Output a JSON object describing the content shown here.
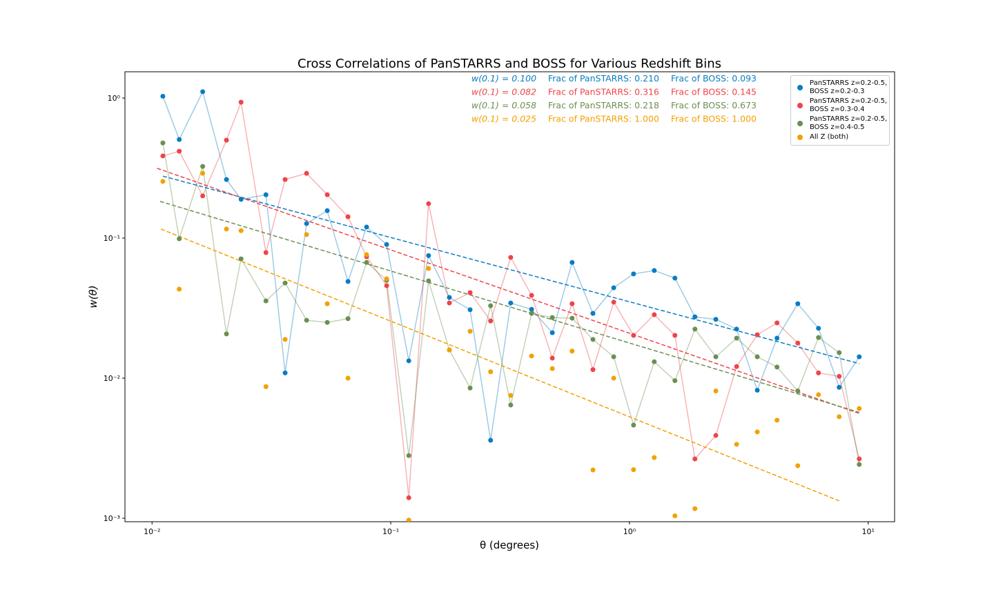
{
  "chart_data": {
    "type": "scatter-line",
    "title": "Cross Correlations of PanSTARRS and BOSS for Various Redshift Bins",
    "x_label": "θ (degrees)",
    "y_label": "w(θ)",
    "x_log": true,
    "y_log": true,
    "grid": false,
    "legend": "upper right",
    "xlim": [
      0.0077,
      12.9
    ],
    "ylim": [
      0.000944,
      1.54
    ],
    "xticks": [
      {
        "value": 0.01,
        "label": "10⁻²"
      },
      {
        "value": 0.1,
        "label": "10⁻¹"
      },
      {
        "value": 1,
        "label": "10⁰"
      },
      {
        "value": 10,
        "label": "10¹"
      }
    ],
    "yticks": [
      {
        "value": 0.001,
        "label": "10⁻³"
      },
      {
        "value": 0.01,
        "label": "10⁻²"
      },
      {
        "value": 0.1,
        "label": "10⁻¹"
      },
      {
        "value": 1,
        "label": "10⁰"
      }
    ],
    "x": [
      0.0111,
      0.013,
      0.0163,
      0.0205,
      0.0236,
      0.03,
      0.0361,
      0.0444,
      0.0542,
      0.0662,
      0.0792,
      0.0961,
      0.119,
      0.144,
      0.176,
      0.215,
      0.262,
      0.318,
      0.389,
      0.475,
      0.575,
      0.703,
      0.859,
      1.04,
      1.27,
      1.55,
      1.88,
      2.3,
      2.81,
      3.43,
      4.15,
      5.07,
      6.19,
      7.56,
      9.17
    ],
    "series": [
      {
        "name": "PanSTARRS z=0.2-0.5,\nBOSS z=0.2-0.3",
        "color": "#0a7cc4",
        "connect": true,
        "values": [
          1.03,
          0.506,
          1.11,
          0.262,
          0.189,
          0.204,
          0.0109,
          0.127,
          0.157,
          0.049,
          0.12,
          0.09,
          0.0133,
          0.075,
          0.0377,
          0.0308,
          0.0036,
          0.0344,
          0.031,
          0.0211,
          0.067,
          0.029,
          0.0442,
          0.0555,
          0.0587,
          0.0518,
          0.0274,
          0.0263,
          0.0224,
          0.0082,
          0.0193,
          0.034,
          0.0227,
          0.0086,
          0.0142
        ]
      },
      {
        "name": "PanSTARRS z=0.2-0.5,\nBOSS z=0.3-0.4",
        "color": "#ee4449",
        "connect": true,
        "values": [
          0.386,
          0.417,
          0.2,
          0.5,
          0.934,
          0.0788,
          0.262,
          0.29,
          0.204,
          0.142,
          0.0736,
          0.0457,
          0.0014,
          0.176,
          0.0344,
          0.0408,
          0.0256,
          0.0728,
          0.039,
          0.0139,
          0.034,
          0.0115,
          0.0349,
          0.0202,
          0.0284,
          0.0202,
          0.00265,
          0.0039,
          0.0121,
          0.0204,
          0.0248,
          0.0178,
          0.0109,
          0.0103,
          0.00265
        ]
      },
      {
        "name": "PanSTARRS z=0.2-0.5,\nBOSS z=0.4-0.5",
        "color": "#6b8f50",
        "connect": true,
        "values": [
          0.478,
          0.0989,
          0.325,
          0.0207,
          0.0711,
          0.0356,
          0.0478,
          0.0259,
          0.025,
          0.0266,
          0.067,
          0.05,
          0.0028,
          0.0495,
          0.0159,
          0.0085,
          0.0329,
          0.00643,
          0.029,
          0.0271,
          0.0268,
          0.0189,
          0.0142,
          0.00462,
          0.0131,
          0.0096,
          0.0224,
          0.0142,
          0.0193,
          0.0142,
          0.012,
          0.0081,
          0.0195,
          0.0152,
          0.00242
        ]
      },
      {
        "name": "All Z (both)",
        "color": "#f2a100",
        "connect": false,
        "values": [
          0.254,
          0.0432,
          0.29,
          0.116,
          0.113,
          0.0087,
          0.0189,
          0.106,
          0.034,
          0.01,
          0.0762,
          0.0512,
          0.00097,
          0.0607,
          0.0159,
          0.0216,
          0.0111,
          0.00753,
          0.0144,
          0.0117,
          0.0156,
          0.00221,
          0.01,
          0.00222,
          0.00271,
          0.00104,
          0.00117,
          0.0081,
          0.00337,
          0.00413,
          0.00501,
          0.00237,
          0.00762,
          0.0053,
          0.00607
        ]
      }
    ],
    "fit_lines": [
      {
        "color": "#0a7cc4",
        "x": [
          0.0111,
          9.17
        ],
        "values": [
          0.277,
          0.0127
        ]
      },
      {
        "color": "#ee4449",
        "x": [
          0.0105,
          9.17
        ],
        "values": [
          0.315,
          0.0056
        ]
      },
      {
        "color": "#6b8f50",
        "x": [
          0.0108,
          9.17
        ],
        "values": [
          0.183,
          0.0057
        ]
      },
      {
        "color": "#f2a100",
        "x": [
          0.0109,
          7.56
        ],
        "values": [
          0.116,
          0.00133
        ]
      }
    ],
    "annotations": [
      {
        "color": "#0a7cc4",
        "texts": [
          "w(0.1) = 0.100",
          "Frac of PanSTARRS: 0.210",
          "Frac of BOSS: 0.093"
        ]
      },
      {
        "color": "#ee4449",
        "texts": [
          "w(0.1) = 0.082",
          "Frac of PanSTARRS: 0.316",
          "Frac of BOSS: 0.145"
        ]
      },
      {
        "color": "#6b8f50",
        "texts": [
          "w(0.1) = 0.058",
          "Frac of PanSTARRS: 0.218",
          "Frac of BOSS: 0.673"
        ]
      },
      {
        "color": "#f2a100",
        "texts": [
          "w(0.1) = 0.025",
          "Frac of PanSTARRS: 1.000",
          "Frac of BOSS: 1.000"
        ]
      }
    ]
  }
}
